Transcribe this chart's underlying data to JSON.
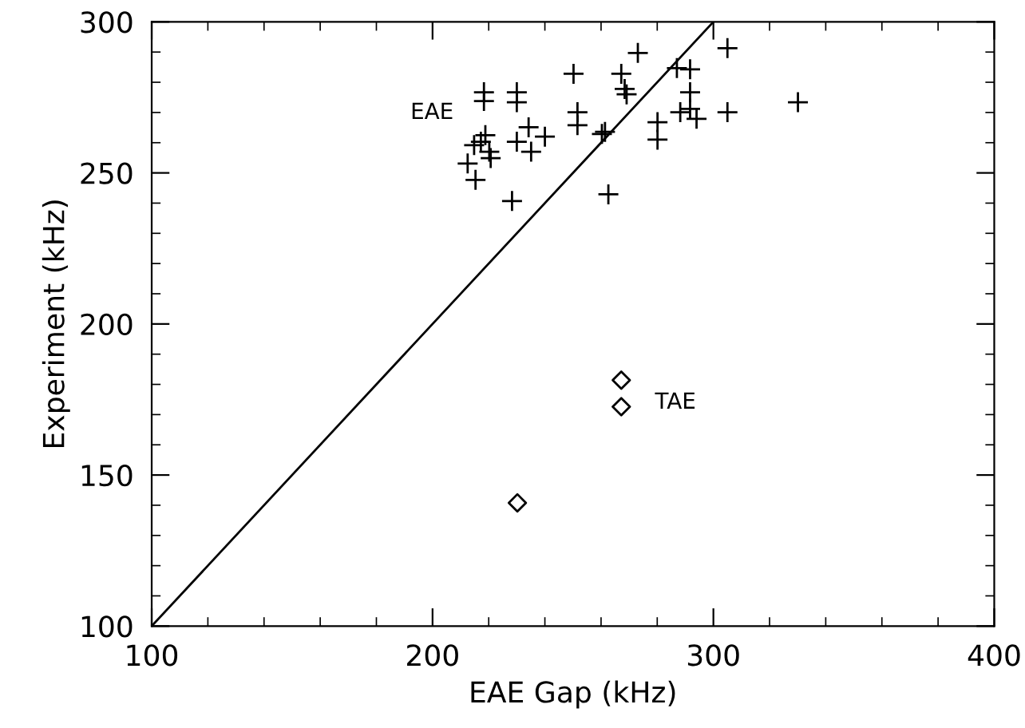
{
  "chart_data": {
    "type": "scatter",
    "xlabel": "EAE Gap (kHz)",
    "ylabel": "Experiment (kHz)",
    "xlim": [
      100,
      400
    ],
    "ylim": [
      100,
      300
    ],
    "xticks": [
      100,
      200,
      300,
      400
    ],
    "yticks": [
      100,
      150,
      200,
      250,
      300
    ],
    "grid": false,
    "legend": false,
    "series": [
      {
        "name": "EAE",
        "color": "#000000",
        "marker": "cross",
        "x": [
          212.5,
          214.8,
          215.3,
          217.2,
          218.3,
          218.3,
          218.8,
          220.2,
          220.7,
          228.3,
          230.0,
          230.0,
          230.0,
          234.2,
          235.1,
          240.0,
          250.2,
          251.6,
          251.6,
          260.3,
          261.4,
          262.6,
          267.2,
          268.4,
          269.1,
          273.1,
          280.1,
          280.1,
          287.0,
          288.2,
          291.7,
          291.7,
          291.7,
          294.0,
          305.0,
          305.0,
          330.1
        ],
        "values": [
          253.1,
          259.2,
          247.7,
          260.3,
          276.7,
          273.8,
          262.5,
          257.0,
          254.9,
          240.7,
          276.7,
          273.4,
          260.3,
          265.1,
          257.0,
          262.0,
          282.8,
          270.1,
          265.8,
          262.9,
          263.6,
          242.9,
          282.8,
          277.8,
          276.0,
          289.7,
          266.8,
          261.0,
          284.7,
          270.1,
          284.3,
          276.7,
          271.2,
          267.9,
          291.3,
          270.1,
          273.4
        ]
      },
      {
        "name": "TAE",
        "color": "#000000",
        "marker": "diamond",
        "x": [
          267.2,
          267.2,
          230.2
        ],
        "values": [
          181.4,
          172.6,
          140.8
        ]
      },
      {
        "type": "line",
        "color": "#000000",
        "line_style": "solid",
        "x": [
          100,
          300
        ],
        "values": [
          100,
          300
        ]
      }
    ]
  }
}
